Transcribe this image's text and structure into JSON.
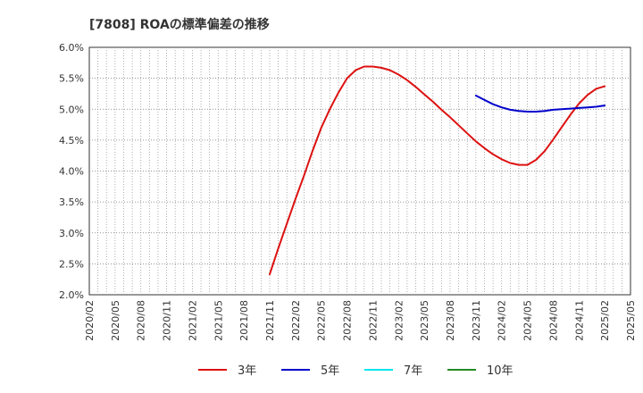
{
  "chart_data": {
    "type": "line",
    "title": "[7808]  ROAの標準偏差の推移",
    "xlabel": "",
    "ylabel": "",
    "y_ticks": [
      "2.0%",
      "2.5%",
      "3.0%",
      "3.5%",
      "4.0%",
      "4.5%",
      "5.0%",
      "5.5%",
      "6.0%"
    ],
    "ylim": [
      2.0,
      6.0
    ],
    "x_ticks": [
      "2020/02",
      "2020/05",
      "2020/08",
      "2020/11",
      "2021/02",
      "2021/05",
      "2021/08",
      "2021/11",
      "2022/02",
      "2022/05",
      "2022/08",
      "2022/11",
      "2023/02",
      "2023/05",
      "2023/08",
      "2023/11",
      "2024/02",
      "2024/05",
      "2024/08",
      "2024/11",
      "2025/02",
      "2025/05"
    ],
    "grid": true,
    "legend_position": "bottom",
    "series": [
      {
        "name": "3年",
        "color": "#dd1111",
        "x": [
          "2021/11",
          "2021/12",
          "2022/01",
          "2022/02",
          "2022/03",
          "2022/04",
          "2022/05",
          "2022/06",
          "2022/07",
          "2022/08",
          "2022/09",
          "2022/10",
          "2022/11",
          "2022/12",
          "2023/01",
          "2023/02",
          "2023/03",
          "2023/04",
          "2023/05",
          "2023/06",
          "2023/07",
          "2023/08",
          "2023/09",
          "2023/10",
          "2023/11",
          "2023/12",
          "2024/01",
          "2024/02",
          "2024/03",
          "2024/04",
          "2024/05",
          "2024/06",
          "2024/07",
          "2024/08",
          "2024/09",
          "2024/10",
          "2024/11",
          "2024/12",
          "2025/01",
          "2025/02"
        ],
        "values": [
          2.33,
          2.75,
          3.15,
          3.55,
          3.93,
          4.33,
          4.7,
          5.0,
          5.27,
          5.5,
          5.63,
          5.69,
          5.69,
          5.67,
          5.63,
          5.56,
          5.47,
          5.36,
          5.24,
          5.12,
          4.99,
          4.87,
          4.74,
          4.61,
          4.48,
          4.37,
          4.27,
          4.19,
          4.13,
          4.1,
          4.1,
          4.18,
          4.32,
          4.51,
          4.71,
          4.91,
          5.09,
          5.23,
          5.33,
          5.37
        ]
      },
      {
        "name": "5年",
        "color": "#0000cc",
        "x": [
          "2023/11",
          "2023/12",
          "2024/01",
          "2024/02",
          "2024/03",
          "2024/04",
          "2024/05",
          "2024/06",
          "2024/07",
          "2024/08",
          "2024/09",
          "2024/10",
          "2024/11",
          "2024/12",
          "2025/01",
          "2025/02"
        ],
        "values": [
          5.22,
          5.15,
          5.08,
          5.03,
          4.99,
          4.97,
          4.96,
          4.96,
          4.97,
          4.99,
          5.0,
          5.01,
          5.02,
          5.03,
          5.04,
          5.06
        ]
      },
      {
        "name": "7年",
        "color": "#00e5ee",
        "x": [],
        "values": []
      },
      {
        "name": "10年",
        "color": "#228b22",
        "x": [],
        "values": []
      }
    ]
  }
}
